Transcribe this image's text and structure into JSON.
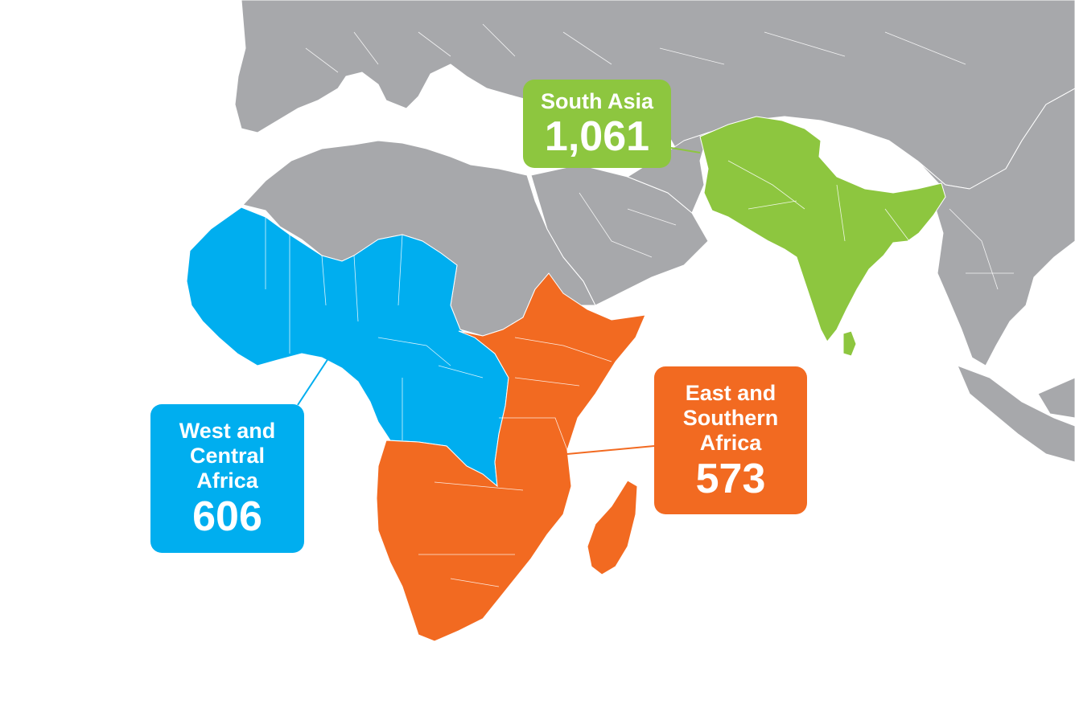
{
  "colors": {
    "background": "#ffffff",
    "land_other": "#a7a8ab",
    "south_asia": "#8dc63f",
    "west_central_africa": "#00aeef",
    "east_southern_africa": "#f26a21"
  },
  "regions": [
    {
      "id": "south-asia",
      "name": "South Asia",
      "value": "1,061",
      "color": "#8dc63f"
    },
    {
      "id": "west-central-africa",
      "name": "West and\nCentral\nAfrica",
      "value": "606",
      "color": "#00aeef"
    },
    {
      "id": "east-southern-africa",
      "name": "East and\nSouthern\nAfrica",
      "value": "573",
      "color": "#f26a21"
    }
  ]
}
